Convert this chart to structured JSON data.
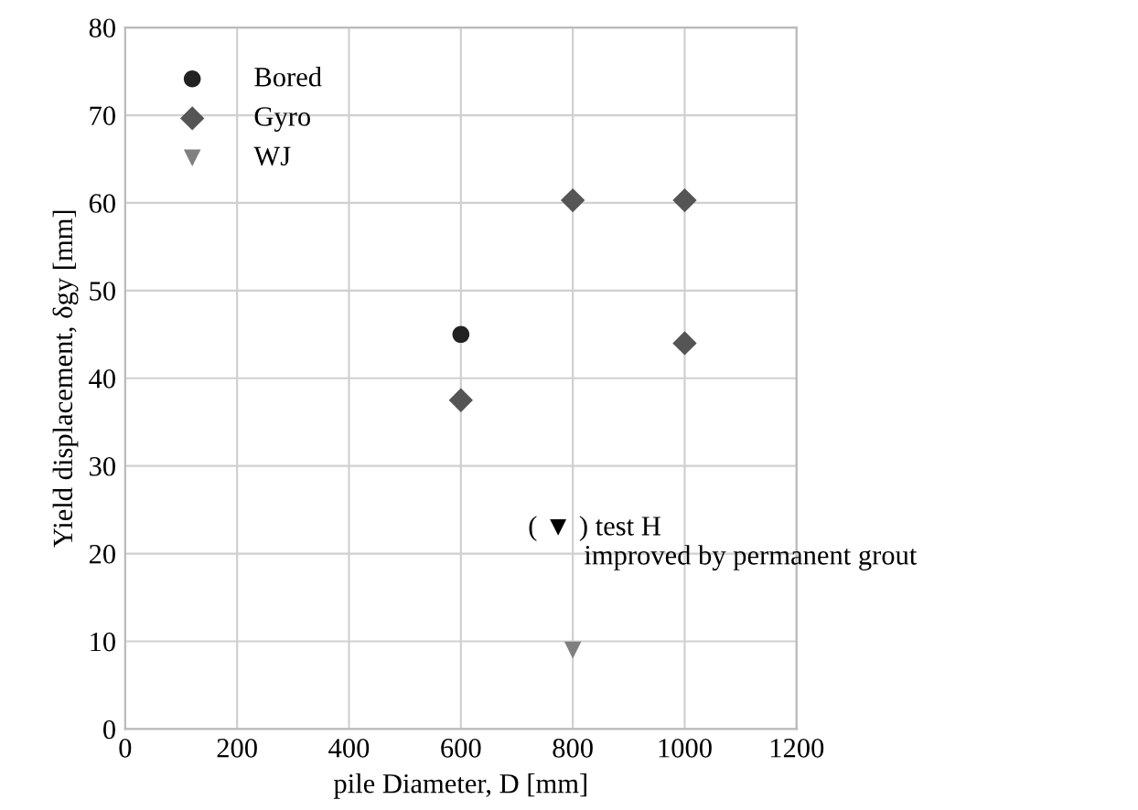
{
  "chart_data": {
    "type": "scatter",
    "xlabel": "pile Diameter, D [mm]",
    "ylabel": "Yield displacement, δgy [mm]",
    "series": [
      {
        "name": "Bored",
        "color": "#222222",
        "marker": "circle",
        "x": [
          600
        ],
        "values": [
          45
        ]
      },
      {
        "name": "Gyro",
        "color": "#555555",
        "marker": "diamond",
        "x": [
          600,
          800,
          1000,
          1000
        ],
        "values": [
          37.5,
          60.3,
          60.3,
          44
        ]
      },
      {
        "name": "WJ",
        "color": "#808080",
        "marker": "triangle",
        "x": [
          800
        ],
        "values": [
          9
        ]
      }
    ],
    "annotations": [
      "( ▼ ) test H\n        improved by permanent grout"
    ],
    "xlim": [
      0,
      1200
    ],
    "xticks": [
      0,
      200,
      400,
      600,
      800,
      1000,
      1200
    ],
    "ylim": [
      0,
      80
    ],
    "yticks": [
      0,
      10,
      20,
      30,
      40,
      50,
      60,
      70,
      80
    ],
    "grid": true,
    "legend": "top left"
  }
}
